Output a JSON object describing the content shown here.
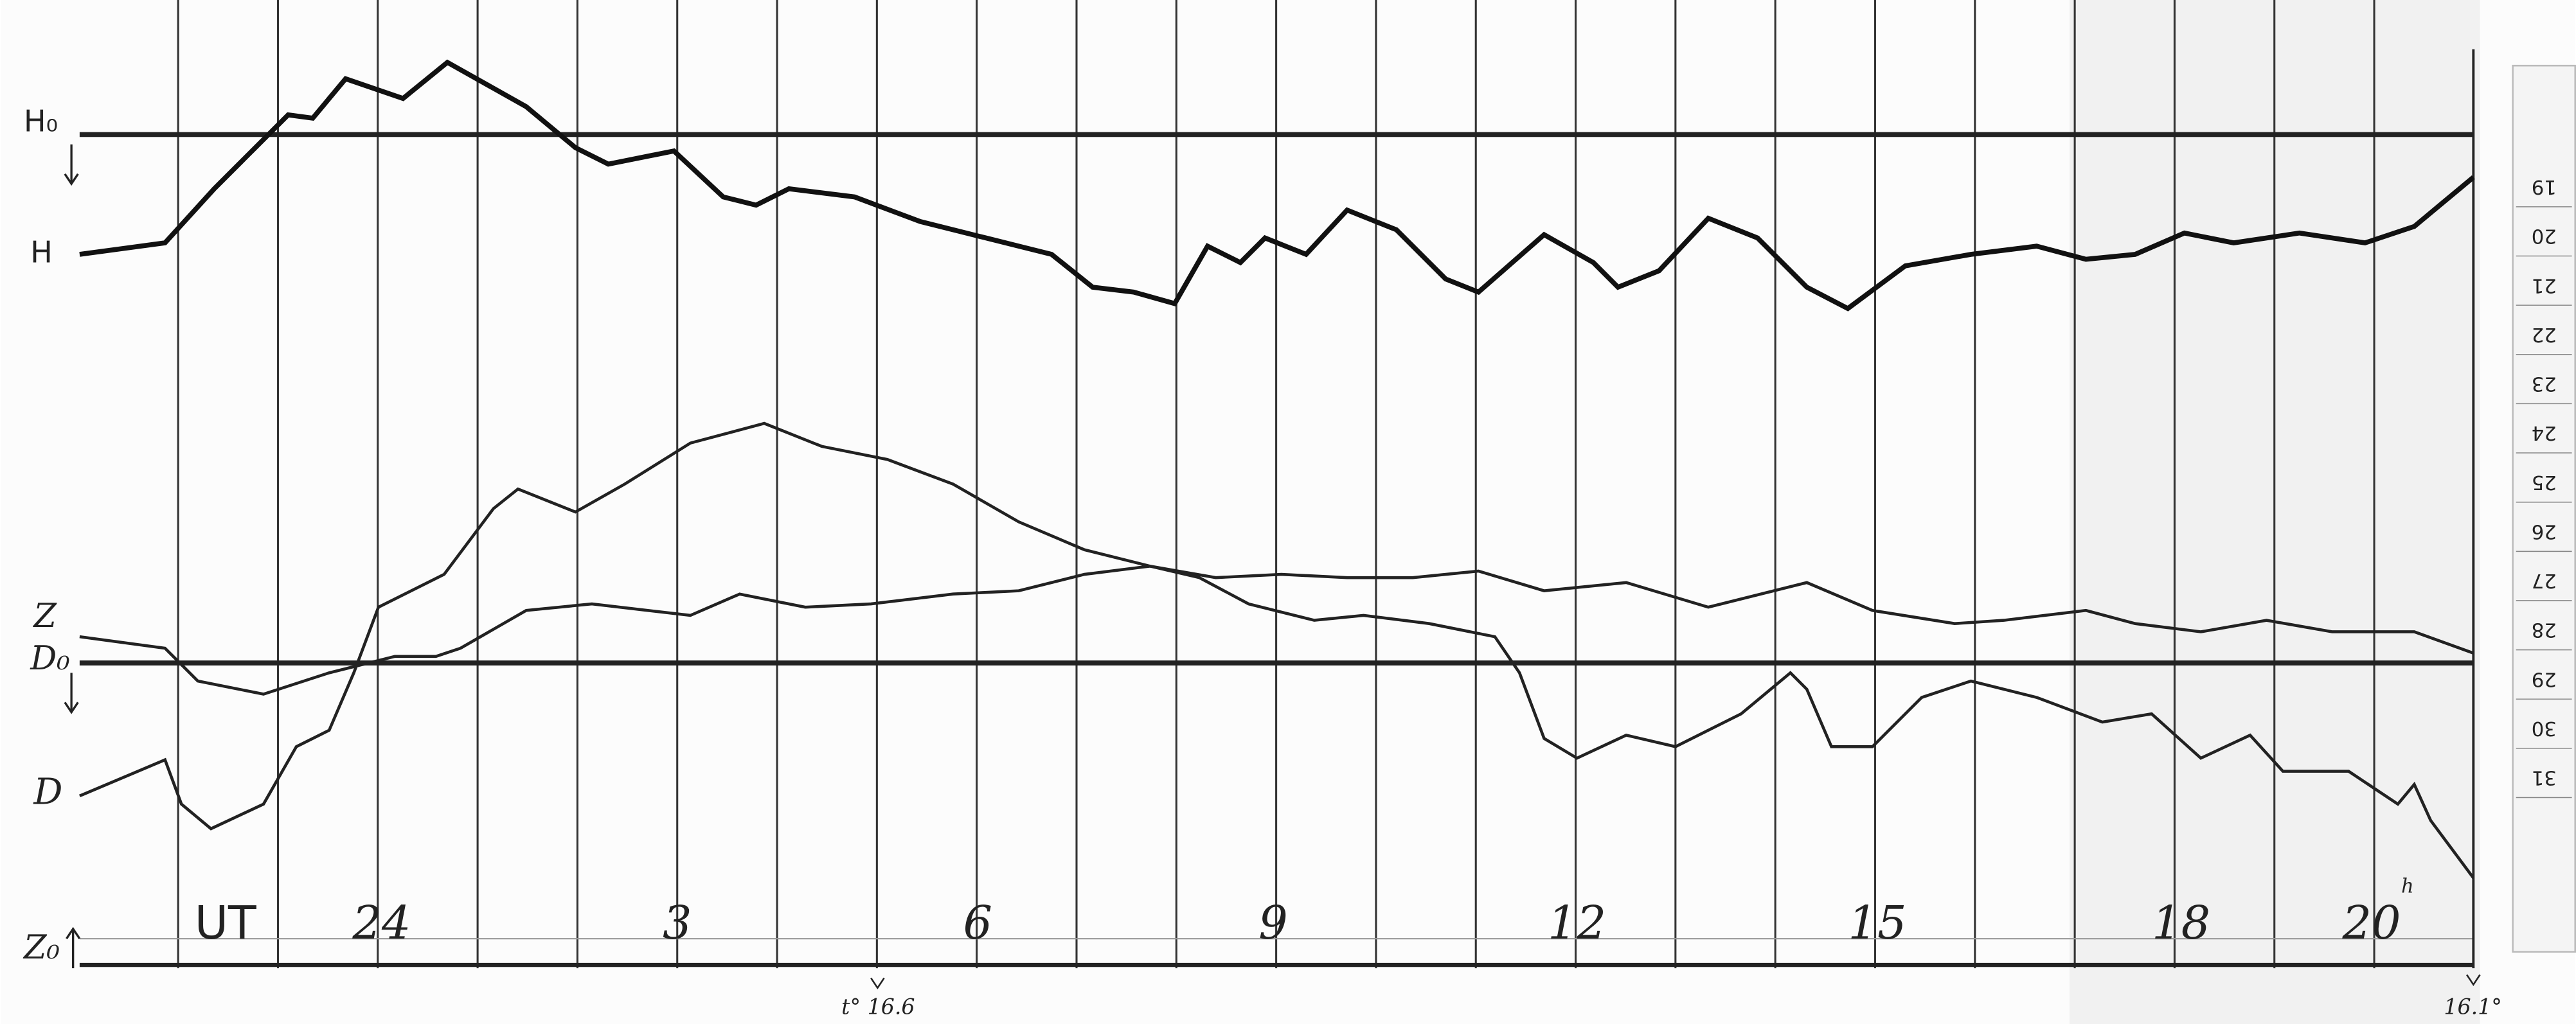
{
  "labels": {
    "h0": "H₀",
    "h": "H",
    "z": "Z",
    "d0": "D₀",
    "d": "D",
    "z0": "Z₀"
  },
  "time_axis": {
    "unit": "UT",
    "hours": [
      "24",
      "3",
      "6",
      "9",
      "12",
      "15",
      "18",
      "20"
    ],
    "suffix": "h"
  },
  "temperatures": {
    "start": "t° 16.6",
    "end": "16.1°"
  },
  "scale_strip": [
    "19",
    "20",
    "21",
    "22",
    "23",
    "24",
    "25",
    "26",
    "27",
    "28",
    "29",
    "30",
    "31"
  ]
}
